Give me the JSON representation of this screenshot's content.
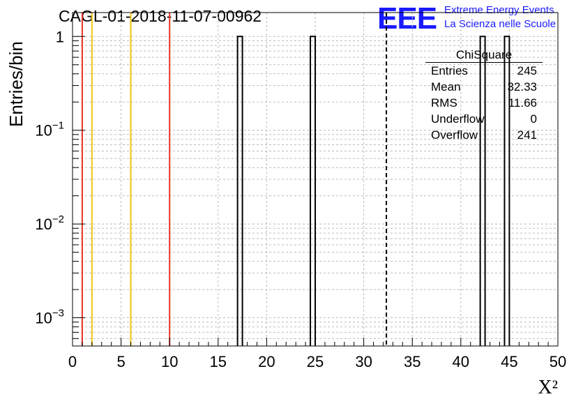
{
  "header": {
    "title": "CAGL-01-2018-11-07-00962",
    "logo_text": "EEE",
    "logo_line1": "Extreme Energy Events",
    "logo_line2": "La Scienza nelle Scuole"
  },
  "stats": {
    "name": "ChiSquare",
    "rows": [
      {
        "label": "Entries",
        "value": "245"
      },
      {
        "label": "Mean",
        "value": "32.33"
      },
      {
        "label": "RMS",
        "value": "11.66"
      },
      {
        "label": "Underflow",
        "value": "0"
      },
      {
        "label": "Overflow",
        "value": "241"
      }
    ]
  },
  "colors": {
    "red_line": "#e8312a",
    "yellow_line": "#f2c40f",
    "logo": "#1a1aff",
    "grid": "#bbbbbb"
  },
  "chart_data": {
    "type": "bar",
    "xlabel": "X²",
    "ylabel": "Entries/bin",
    "xlim": [
      0,
      50
    ],
    "ylim": [
      0.0005,
      1.8
    ],
    "yscale": "log",
    "grid": true,
    "xticks": [
      0,
      5,
      10,
      15,
      20,
      25,
      30,
      35,
      40,
      45,
      50
    ],
    "yticks": [
      {
        "value": 0.001,
        "base": "10",
        "exp": "−3"
      },
      {
        "value": 0.01,
        "base": "10",
        "exp": "−2"
      },
      {
        "value": 0.1,
        "base": "10",
        "exp": "−1"
      },
      {
        "value": 1,
        "base": "1",
        "exp": ""
      }
    ],
    "bins": [
      {
        "x0": 17.0,
        "x1": 17.5,
        "value": 1
      },
      {
        "x0": 24.5,
        "x1": 25.0,
        "value": 1
      },
      {
        "x0": 42.0,
        "x1": 42.5,
        "value": 1
      },
      {
        "x0": 44.5,
        "x1": 45.0,
        "value": 1
      }
    ],
    "vlines": [
      {
        "x": 1,
        "color": "red"
      },
      {
        "x": 2,
        "color": "yellow"
      },
      {
        "x": 6,
        "color": "yellow"
      },
      {
        "x": 10,
        "color": "red"
      }
    ],
    "mean_marker": 32.33
  }
}
